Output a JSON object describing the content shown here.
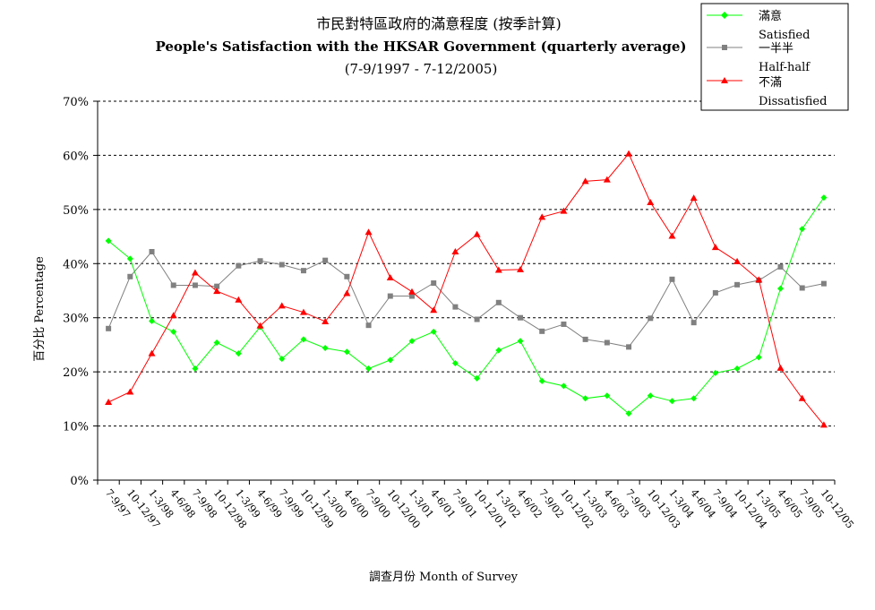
{
  "title": {
    "line1": "市民對特區政府的滿意程度 (按季計算)",
    "line2": "People's Satisfaction with the HKSAR Government (quarterly average)",
    "line3": "(7-9/1997 - 7-12/2005)"
  },
  "colors": {
    "satisfied": "#00ff00",
    "half": "#808080",
    "dissatisfied": "#ff0000"
  },
  "chart_data": {
    "type": "line",
    "title": "People's Satisfaction with the HKSAR Government (quarterly average)",
    "xlabel": "調查月份 Month of Survey",
    "ylabel": "百分比 Percentage",
    "ylim": [
      0,
      70
    ],
    "yticks": [
      "0%",
      "10%",
      "20%",
      "30%",
      "40%",
      "50%",
      "60%",
      "70%"
    ],
    "grid": true,
    "legend_position": "top-right",
    "categories": [
      "7-9/97",
      "10-12/97",
      "1-3/98",
      "4-6/98",
      "7-9/98",
      "10-12/98",
      "1-3/99",
      "4-6/99",
      "7-9/99",
      "10-12/99",
      "1-3/00",
      "4-6/00",
      "7-9/00",
      "10-12/00",
      "1-3/01",
      "4-6/01",
      "7-9/01",
      "10-12/01",
      "1-3/02",
      "4-6/02",
      "7-9/02",
      "10-12/02",
      "1-3/03",
      "4-6/03",
      "7-9/03",
      "10-12/03",
      "1-3/04",
      "4-6/04",
      "7-9/04",
      "10-12/04",
      "1-3/05",
      "4-6/05",
      "7-9/05",
      "10-12/05"
    ],
    "series": [
      {
        "name": "滿意",
        "name_en": "Satisfied",
        "color": "#00ff00",
        "marker": "diamond",
        "values": [
          44.2,
          40.9,
          29.4,
          27.4,
          20.6,
          25.4,
          23.4,
          28.3,
          22.4,
          26.0,
          24.4,
          23.7,
          20.6,
          22.2,
          25.7,
          27.4,
          21.6,
          18.8,
          24.0,
          25.7,
          18.3,
          17.4,
          15.1,
          15.6,
          12.3,
          15.6,
          14.6,
          15.1,
          19.8,
          20.6,
          22.7,
          35.4,
          46.4,
          52.2
        ]
      },
      {
        "name": "一半半",
        "name_en": "Half-half",
        "color": "#808080",
        "marker": "square",
        "values": [
          28.0,
          37.6,
          42.2,
          36.0,
          36.0,
          35.8,
          39.6,
          40.5,
          39.8,
          38.7,
          40.6,
          37.6,
          28.6,
          34.0,
          34.0,
          36.4,
          32.0,
          29.7,
          32.8,
          30.0,
          27.5,
          28.8,
          26.0,
          25.4,
          24.6,
          29.9,
          37.1,
          29.1,
          34.6,
          36.1,
          36.9,
          39.4,
          35.5,
          36.3
        ]
      },
      {
        "name": "不滿",
        "name_en": "Dissatisfied",
        "color": "#ff0000",
        "marker": "triangle",
        "values": [
          14.4,
          16.3,
          23.4,
          30.4,
          38.3,
          34.9,
          33.3,
          28.5,
          32.2,
          31.0,
          29.3,
          34.5,
          45.8,
          37.4,
          34.8,
          31.4,
          42.2,
          45.4,
          38.8,
          38.9,
          48.6,
          49.7,
          55.2,
          55.5,
          60.3,
          51.3,
          45.1,
          52.1,
          43.0,
          40.4,
          37.0,
          20.7,
          15.1,
          10.2
        ]
      }
    ]
  }
}
